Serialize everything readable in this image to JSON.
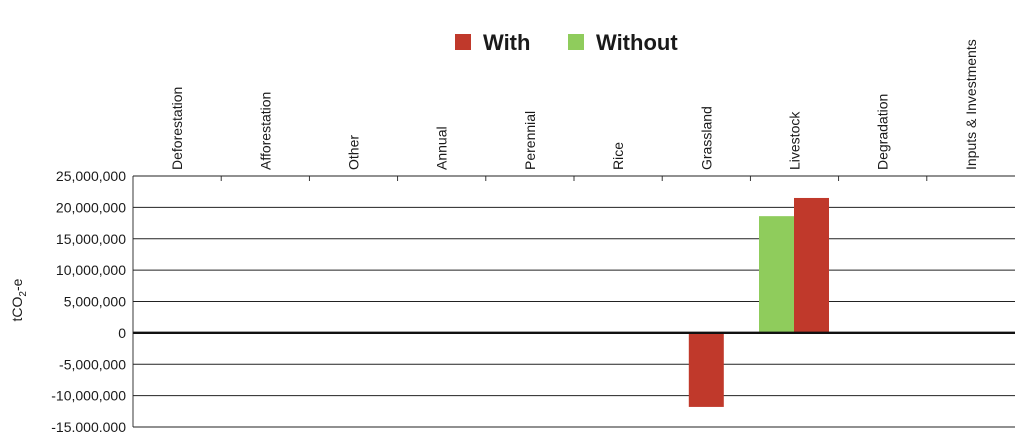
{
  "chart_data": {
    "type": "bar",
    "categories": [
      "Deforestation",
      "Afforestation",
      "Other",
      "Annual",
      "Perennial",
      "Rice",
      "Grassland",
      "Livestock",
      "Degradation",
      "Inputs & Investments"
    ],
    "series": [
      {
        "name": "With",
        "color": "#c0392b",
        "values": [
          0,
          0,
          0,
          0,
          0,
          0,
          -11800000,
          21500000,
          0,
          0
        ]
      },
      {
        "name": "Without",
        "color": "#8fcc5c",
        "values": [
          0,
          0,
          0,
          0,
          0,
          0,
          0,
          18600000,
          0,
          0
        ]
      }
    ],
    "ylabel": "tCO2-e",
    "ylim": [
      -15000000,
      25000000
    ],
    "yticks": [
      25000000,
      20000000,
      15000000,
      10000000,
      5000000,
      0,
      -5000000,
      -10000000,
      -15000000
    ],
    "ytick_labels": [
      "25,000,000",
      "20,000,000",
      "15,000,000",
      "10,000,000",
      "5,000,000",
      "0",
      "-5,000,000",
      "-10,000,000",
      "-15,000,000"
    ],
    "legend_position": "top",
    "grid": true
  }
}
